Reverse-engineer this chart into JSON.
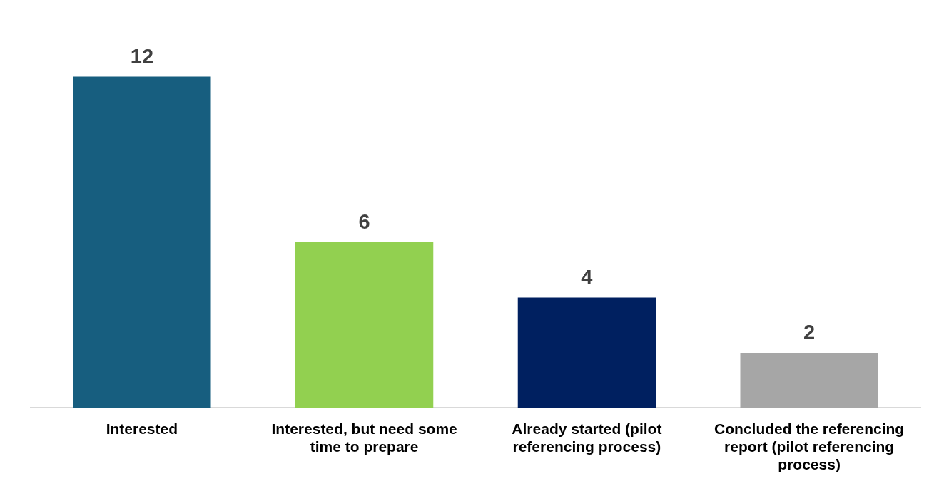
{
  "chart_data": {
    "type": "bar",
    "categories": [
      "Interested",
      "Interested, but need some time to prepare",
      "Already started (pilot referencing process)",
      "Concluded the referencing report (pilot referencing process)"
    ],
    "values": [
      12,
      6,
      4,
      2
    ],
    "colors": [
      "#175e7f",
      "#92d050",
      "#002060",
      "#a6a6a6"
    ],
    "data_labels": true,
    "legend": false,
    "grid": false
  }
}
